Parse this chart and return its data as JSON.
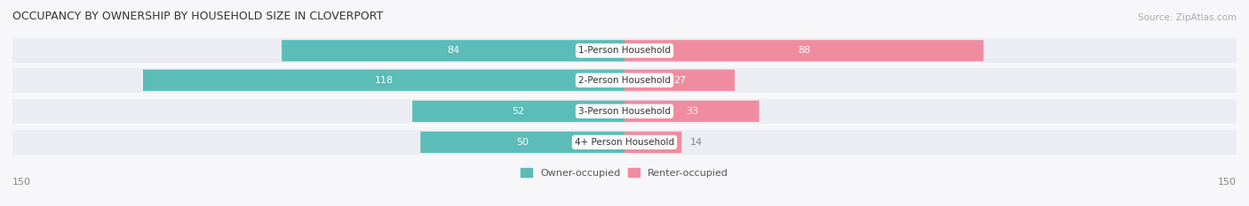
{
  "title": "OCCUPANCY BY OWNERSHIP BY HOUSEHOLD SIZE IN CLOVERPORT",
  "source": "Source: ZipAtlas.com",
  "categories": [
    "1-Person Household",
    "2-Person Household",
    "3-Person Household",
    "4+ Person Household"
  ],
  "owner_values": [
    84,
    118,
    52,
    50
  ],
  "renter_values": [
    88,
    27,
    33,
    14
  ],
  "owner_color": "#5bbcb8",
  "renter_color": "#f08ca0",
  "bg_color": "#f7f7f9",
  "row_bg_color": "#ecedf2",
  "max_axis": 150,
  "legend_owner": "Owner-occupied",
  "legend_renter": "Renter-occupied",
  "title_fontsize": 9,
  "source_fontsize": 7.5,
  "bar_label_fontsize": 8,
  "category_fontsize": 7.5,
  "axis_label_fontsize": 8
}
